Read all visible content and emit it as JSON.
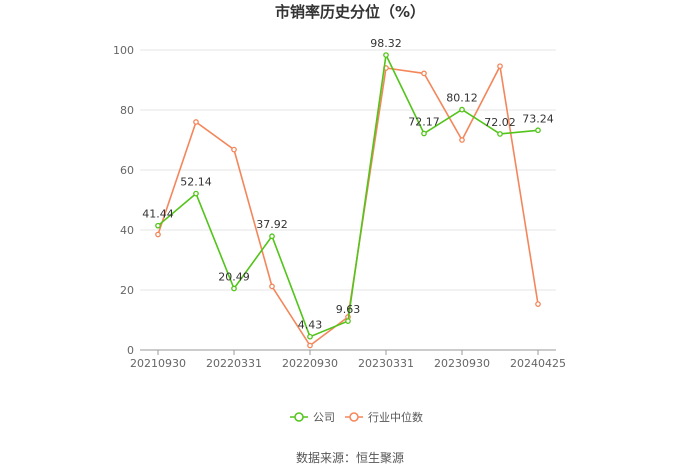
{
  "chart_data": {
    "type": "line",
    "title": "市销率历史分位（%）",
    "xlabel": "",
    "ylabel": "",
    "ylim": [
      0,
      100
    ],
    "yticks": [
      0,
      20,
      40,
      60,
      80,
      100
    ],
    "x": [
      "20210930",
      "20211231",
      "20220331",
      "20220630",
      "20220930",
      "20221231",
      "20230331",
      "20230630",
      "20230930",
      "20231231",
      "20240425"
    ],
    "x_tick_labels": [
      "20210930",
      "20220331",
      "20220930",
      "20230331",
      "20230930",
      "20240425"
    ],
    "grid": "horizontal",
    "legend_position": "bottom-center",
    "series": [
      {
        "name": "公司",
        "color": "#52c41a",
        "values": [
          41.44,
          52.14,
          20.49,
          37.92,
          4.43,
          9.63,
          98.32,
          72.17,
          80.12,
          72.02,
          73.24
        ],
        "data_labels": [
          "41.44",
          "52.14",
          "20.49",
          "37.92",
          "4.43",
          "9.63",
          "98.32",
          "72.17",
          "80.12",
          "72.02",
          "73.24"
        ]
      },
      {
        "name": "行业中位数",
        "color": "#f4865b",
        "values": [
          38.5,
          76.0,
          66.8,
          21.2,
          1.5,
          11.0,
          94.0,
          92.2,
          70.0,
          94.6,
          15.3
        ]
      }
    ]
  },
  "source": "数据来源：恒生聚源"
}
